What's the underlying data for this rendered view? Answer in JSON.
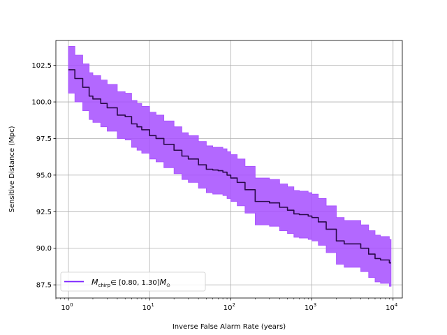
{
  "chart_data": {
    "type": "area",
    "title": "",
    "xlabel": "Inverse False Alarm Rate (years)",
    "ylabel": "Sensitive Distance (Mpc)",
    "x_scale": "log",
    "xlim": [
      0.7,
      13000
    ],
    "ylim": [
      86.6,
      104.2
    ],
    "grid": true,
    "legend_position": "lower-left",
    "x_ticks": [
      {
        "value": 1,
        "label_base": "10",
        "label_exp": "0"
      },
      {
        "value": 10,
        "label_base": "10",
        "label_exp": "1"
      },
      {
        "value": 100,
        "label_base": "10",
        "label_exp": "2"
      },
      {
        "value": 1000,
        "label_base": "10",
        "label_exp": "3"
      },
      {
        "value": 10000,
        "label_base": "10",
        "label_exp": "4"
      }
    ],
    "y_ticks": [
      "87.5",
      "90.0",
      "92.5",
      "95.0",
      "97.5",
      "100.0",
      "102.5"
    ],
    "series": [
      {
        "name": "M_chirp ∈ [0.80, 1.30] M_⊙",
        "legend_parts": {
          "symbol": "M",
          "sub": "chirp",
          "mid": "∈ [0.80, 1.30]",
          "symbol2": "M",
          "sub2": "⊙"
        },
        "line_color": "#2a0a4a",
        "fill_color": "#a64dff",
        "legend_color": "#7a1fff",
        "x": [
          1,
          1.2,
          1.5,
          1.8,
          2,
          2.5,
          3,
          4,
          5,
          6,
          7,
          8,
          10,
          12,
          15,
          20,
          25,
          30,
          40,
          50,
          60,
          70,
          80,
          90,
          100,
          120,
          150,
          200,
          250,
          300,
          400,
          500,
          600,
          700,
          800,
          900,
          1000,
          1200,
          1500,
          2000,
          2500,
          3000,
          4000,
          5000,
          6000,
          7000,
          8000,
          9000
        ],
        "y": [
          102.2,
          101.6,
          101.0,
          100.4,
          100.2,
          99.9,
          99.6,
          99.1,
          99.0,
          98.5,
          98.3,
          98.1,
          97.7,
          97.5,
          97.1,
          96.7,
          96.3,
          96.1,
          95.7,
          95.4,
          95.35,
          95.3,
          95.2,
          95.0,
          94.8,
          94.5,
          94.0,
          93.2,
          93.2,
          93.1,
          92.8,
          92.6,
          92.35,
          92.3,
          92.3,
          92.2,
          92.1,
          91.8,
          91.3,
          90.5,
          90.3,
          90.3,
          90.0,
          89.6,
          89.3,
          89.2,
          89.2,
          89.0
        ],
        "upper": [
          103.8,
          103.2,
          102.6,
          102.0,
          101.8,
          101.5,
          101.2,
          100.7,
          100.6,
          100.1,
          99.9,
          99.7,
          99.3,
          99.1,
          98.7,
          98.3,
          97.9,
          97.7,
          97.3,
          97.0,
          96.9,
          96.9,
          96.8,
          96.6,
          96.4,
          96.1,
          95.6,
          94.8,
          94.8,
          94.7,
          94.4,
          94.2,
          93.95,
          93.9,
          93.9,
          93.8,
          93.7,
          93.4,
          92.9,
          92.1,
          91.9,
          91.9,
          91.6,
          91.2,
          90.9,
          90.8,
          90.8,
          90.6
        ],
        "lower": [
          100.6,
          100.0,
          99.4,
          98.8,
          98.6,
          98.3,
          98.0,
          97.5,
          97.4,
          96.9,
          96.7,
          96.5,
          96.1,
          95.9,
          95.5,
          95.1,
          94.7,
          94.5,
          94.1,
          93.8,
          93.7,
          93.7,
          93.6,
          93.4,
          93.2,
          92.9,
          92.4,
          91.6,
          91.6,
          91.5,
          91.2,
          91.0,
          90.75,
          90.7,
          90.7,
          90.6,
          90.5,
          90.2,
          89.7,
          88.9,
          88.7,
          88.7,
          88.4,
          88.0,
          87.7,
          87.6,
          87.6,
          87.4
        ]
      }
    ]
  }
}
